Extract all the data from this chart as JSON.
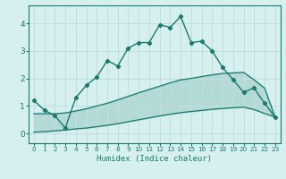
{
  "xlabel": "Humidex (Indice chaleur)",
  "background_color": "#d6f0f0",
  "grid_color": "#c0dede",
  "line_color": "#1a7a6e",
  "xlim": [
    -0.5,
    23.5
  ],
  "ylim": [
    -0.35,
    4.65
  ],
  "xticks": [
    0,
    1,
    2,
    3,
    4,
    5,
    6,
    7,
    8,
    9,
    10,
    11,
    12,
    13,
    14,
    15,
    16,
    17,
    18,
    19,
    20,
    21,
    22,
    23
  ],
  "yticks": [
    0,
    1,
    2,
    3,
    4
  ],
  "main_line_x": [
    0,
    1,
    2,
    3,
    4,
    5,
    6,
    7,
    8,
    9,
    10,
    11,
    12,
    13,
    14,
    15,
    16,
    17,
    18,
    19,
    20,
    21,
    22,
    23
  ],
  "main_line_y": [
    1.2,
    0.85,
    0.65,
    0.2,
    1.3,
    1.75,
    2.05,
    2.65,
    2.45,
    3.1,
    3.3,
    3.3,
    3.95,
    3.85,
    4.25,
    3.3,
    3.35,
    3.0,
    2.4,
    1.95,
    1.5,
    1.65,
    1.1,
    0.6
  ],
  "upper_band_x": [
    0,
    1,
    2,
    3,
    4,
    5,
    6,
    7,
    8,
    9,
    10,
    11,
    12,
    13,
    14,
    15,
    16,
    17,
    18,
    19,
    20,
    21,
    22,
    23
  ],
  "upper_band_y": [
    0.72,
    0.72,
    0.72,
    0.75,
    0.82,
    0.9,
    1.0,
    1.1,
    1.22,
    1.35,
    1.48,
    1.6,
    1.72,
    1.84,
    1.95,
    2.0,
    2.07,
    2.13,
    2.18,
    2.2,
    2.22,
    1.95,
    1.65,
    0.6
  ],
  "lower_band_x": [
    0,
    1,
    2,
    3,
    4,
    5,
    6,
    7,
    8,
    9,
    10,
    11,
    12,
    13,
    14,
    15,
    16,
    17,
    18,
    19,
    20,
    21,
    22,
    23
  ],
  "lower_band_y": [
    0.05,
    0.07,
    0.1,
    0.13,
    0.17,
    0.2,
    0.25,
    0.3,
    0.36,
    0.43,
    0.5,
    0.57,
    0.64,
    0.7,
    0.76,
    0.8,
    0.84,
    0.88,
    0.91,
    0.94,
    0.96,
    0.87,
    0.73,
    0.6
  ]
}
